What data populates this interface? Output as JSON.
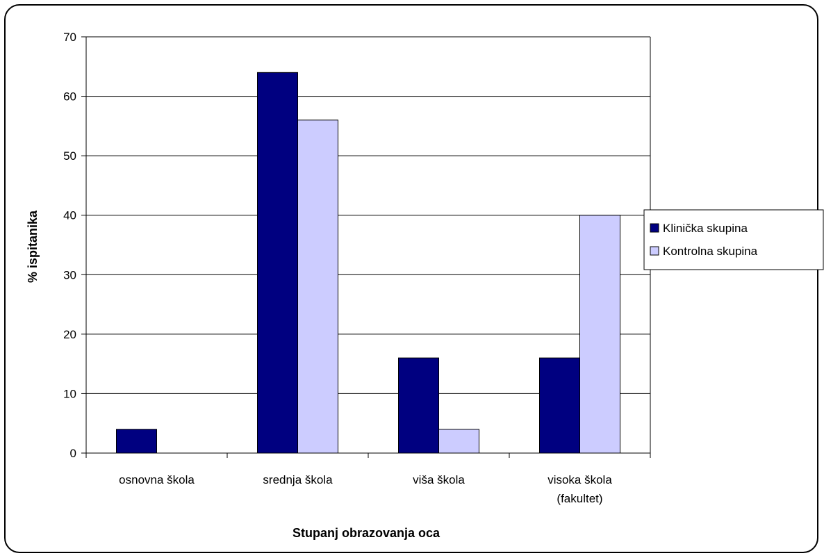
{
  "chart_data": {
    "type": "bar",
    "categories": [
      "osnovna škola",
      "srednja škola",
      "viša škola",
      "visoka škola (fakultet)"
    ],
    "category_lines": [
      [
        "osnovna škola"
      ],
      [
        "srednja škola"
      ],
      [
        "viša škola"
      ],
      [
        "visoka škola",
        "(fakultet)"
      ]
    ],
    "series": [
      {
        "name": "Klinička skupina",
        "values": [
          4,
          64,
          16,
          16
        ],
        "color": "#000080"
      },
      {
        "name": "Kontrolna skupina",
        "values": [
          0,
          56,
          4,
          40
        ],
        "color": "#ccccff"
      }
    ],
    "xlabel": "Stupanj obrazovanja oca",
    "ylabel": "% ispitanika",
    "ylim": [
      0,
      70
    ],
    "yticks": [
      "0",
      "10",
      "20",
      "30",
      "40",
      "50",
      "60",
      "70"
    ],
    "grid": true,
    "legend_position": "right"
  }
}
